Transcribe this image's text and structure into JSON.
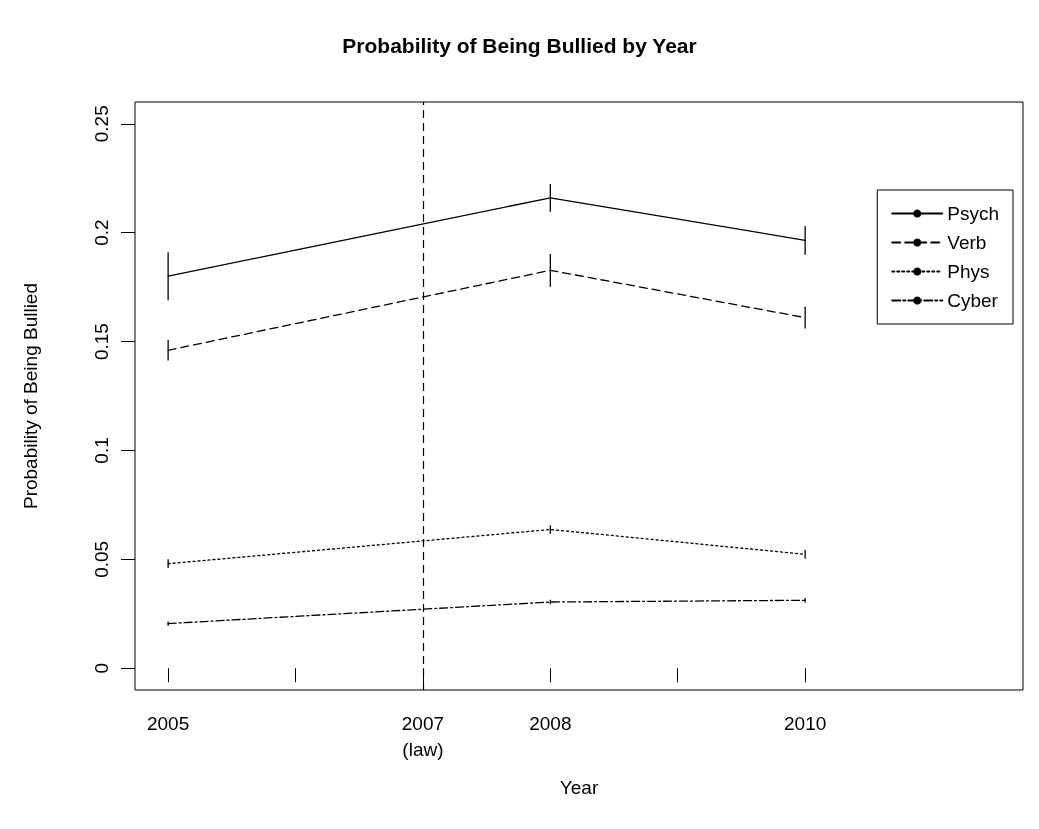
{
  "chart_data": {
    "type": "line",
    "title": "Probability of Being Bullied by Year",
    "xlabel": "Year",
    "ylabel": "Probability of Being Bullied",
    "x": [
      2005,
      2008,
      2010
    ],
    "series": [
      {
        "name": "Psych",
        "color": "#000000",
        "line_style": "solid",
        "values": [
          0.18,
          0.216,
          0.1965
        ],
        "errors": [
          0.011,
          0.0064,
          0.0066
        ]
      },
      {
        "name": "Verb",
        "color": "#000000",
        "line_style": "dashed",
        "values": [
          0.146,
          0.1827,
          0.161
        ],
        "errors": [
          0.0047,
          0.0075,
          0.005
        ]
      },
      {
        "name": "Phys",
        "color": "#000000",
        "line_style": "dotted",
        "values": [
          0.048,
          0.0637,
          0.0523
        ],
        "errors": [
          0.002,
          0.002,
          0.002
        ]
      },
      {
        "name": "Cyber",
        "color": "#000000",
        "line_style": "dashdot",
        "values": [
          0.0205,
          0.0304,
          0.0312
        ],
        "errors": [
          0.001,
          0.001,
          0.001
        ]
      }
    ],
    "xlim": [
      2004.74,
      2011.71
    ],
    "xticks": [
      2005,
      {
        "value": 2006,
        "label": null
      },
      {
        "value": 2007,
        "label": "2007\n(law)"
      },
      2008,
      {
        "value": 2009,
        "label": null
      },
      2010
    ],
    "ylim": [
      -0.01,
      0.26
    ],
    "yticks": [
      0,
      0.05,
      0.1,
      0.15,
      0.2,
      0.25
    ],
    "ref_lines": [
      {
        "axis": "x",
        "value": 2007,
        "color": "#000000",
        "line_style": "dashed"
      }
    ],
    "legend": "top right",
    "marker": "none",
    "grid": false
  }
}
